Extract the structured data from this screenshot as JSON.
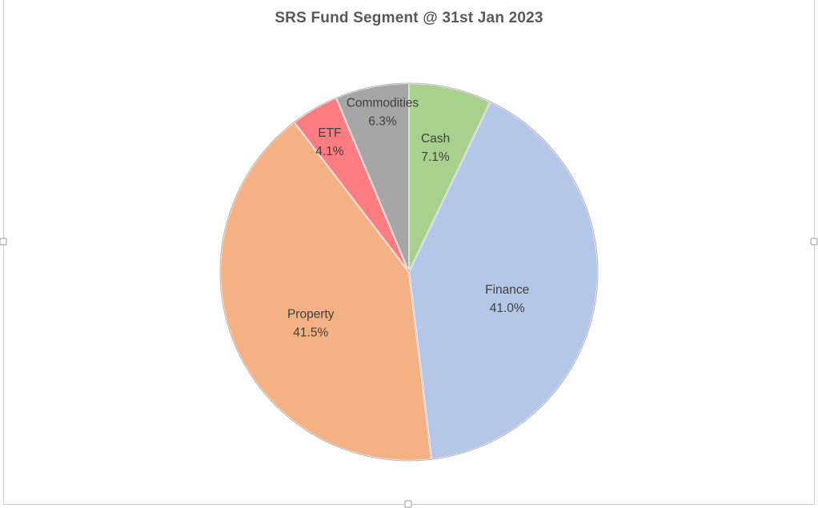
{
  "window": {
    "background": "#ffffff",
    "chart_object_border_color": "#d0d0d0"
  },
  "chart": {
    "title": "SRS Fund Segment @ 31st Jan 2023",
    "title_color": "#595959"
  },
  "chart_data": {
    "type": "pie",
    "title": "SRS Fund Segment @ 31st Jan 2023",
    "categories": [
      "Cash",
      "Finance",
      "Property",
      "ETF",
      "Commodities"
    ],
    "values": [
      7.1,
      41.0,
      41.5,
      4.1,
      6.3
    ],
    "unit": "%",
    "colors": [
      "#a9d18e",
      "#b4c7e7",
      "#f4b183",
      "#ff7c80",
      "#a6a6a6"
    ],
    "label_format": "category newline percent",
    "label_color": "#404040",
    "legend": "none",
    "start_angle_deg": 0,
    "direction": "clockwise",
    "layout": {
      "center": [
        511,
        340
      ],
      "radius": 236,
      "label_offsets": [
        [
          0.14,
          -0.66
        ],
        [
          0.52,
          0.14
        ],
        [
          -0.52,
          0.27
        ],
        [
          -0.42,
          -0.69
        ],
        [
          -0.14,
          -0.85
        ]
      ]
    }
  },
  "selection": {
    "handles": [
      "left-middle",
      "right-middle",
      "bottom-middle"
    ]
  }
}
